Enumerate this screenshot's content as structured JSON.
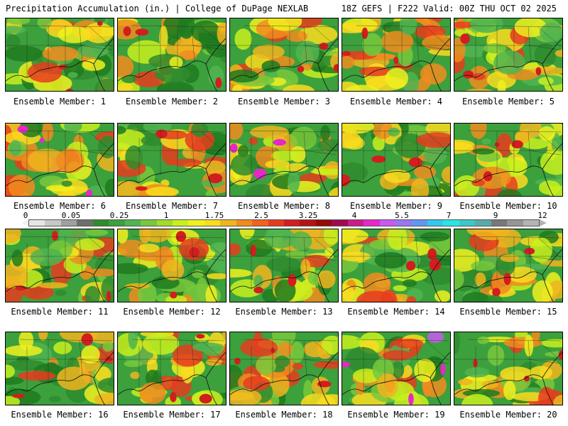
{
  "header": {
    "left": "Precipitation Accumulation (in.) | College of DuPage NEXLAB",
    "right": "18Z GEFS | F222 Valid: 00Z THU OCT 02 2025"
  },
  "legend": {
    "ticks": [
      "0",
      "0.05",
      "0.25",
      "1",
      "1.75",
      "2.5",
      "3.25",
      "4",
      "5.5",
      "7",
      "9",
      "12"
    ],
    "colors": [
      "#e6e6e6",
      "#c8c8c8",
      "#a0a0a0",
      "#6e6e6e",
      "#2e8b2e",
      "#3ca03c",
      "#50b450",
      "#78c83c",
      "#a0dc28",
      "#c8f01e",
      "#f0f01e",
      "#fadc1e",
      "#f0b41e",
      "#f08c1e",
      "#f0641e",
      "#e63c1e",
      "#d21e1e",
      "#b41414",
      "#960a0a",
      "#a00a50",
      "#c81e8c",
      "#e628c8",
      "#c85af0",
      "#9678f0",
      "#6496f0",
      "#32c8f0",
      "#28e6e6",
      "#3cc8c8",
      "#5aaaaa",
      "#787878",
      "#969696",
      "#b4b4b4"
    ]
  },
  "members": [
    {
      "label": "Ensemble Member: 1"
    },
    {
      "label": "Ensemble Member: 2"
    },
    {
      "label": "Ensemble Member: 3"
    },
    {
      "label": "Ensemble Member: 4"
    },
    {
      "label": "Ensemble Member: 5"
    },
    {
      "label": "Ensemble Member: 6"
    },
    {
      "label": "Ensemble Member: 7"
    },
    {
      "label": "Ensemble Member: 8"
    },
    {
      "label": "Ensemble Member: 9"
    },
    {
      "label": "Ensemble Member: 10"
    },
    {
      "label": "Ensemble Member: 11"
    },
    {
      "label": "Ensemble Member: 12"
    },
    {
      "label": "Ensemble Member: 13"
    },
    {
      "label": "Ensemble Member: 14"
    },
    {
      "label": "Ensemble Member: 15"
    },
    {
      "label": "Ensemble Member: 16"
    },
    {
      "label": "Ensemble Member: 17"
    },
    {
      "label": "Ensemble Member: 18"
    },
    {
      "label": "Ensemble Member: 19"
    },
    {
      "label": "Ensemble Member: 20"
    }
  ]
}
